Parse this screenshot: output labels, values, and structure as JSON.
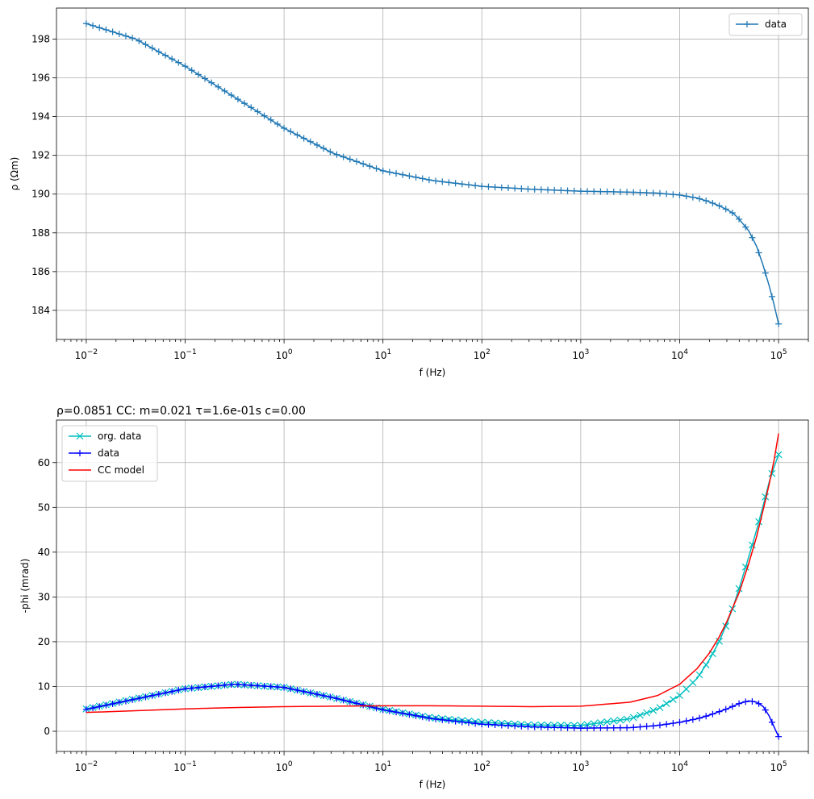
{
  "chart_data": [
    {
      "type": "line",
      "title": "",
      "xlabel": "f (Hz)",
      "ylabel": "ρ (Ωm)",
      "x_scale": "log",
      "xlim": [
        0.005,
        200000
      ],
      "ylim": [
        182.5,
        199.6
      ],
      "grid": true,
      "legend": "top-right",
      "x_tick_values": [
        0.01,
        0.1,
        1,
        10,
        100,
        1000,
        10000,
        100000
      ],
      "x_tick_labels": [
        {
          "base": "10",
          "exp": "−2"
        },
        {
          "base": "10",
          "exp": "−1"
        },
        {
          "base": "10",
          "exp": "0"
        },
        {
          "base": "10",
          "exp": "1"
        },
        {
          "base": "10",
          "exp": "2"
        },
        {
          "base": "10",
          "exp": "3"
        },
        {
          "base": "10",
          "exp": "4"
        },
        {
          "base": "10",
          "exp": "5"
        }
      ],
      "y_ticks": [
        184,
        186,
        188,
        190,
        192,
        194,
        196,
        198
      ],
      "series": [
        {
          "name": "data",
          "color": "#1f77b4",
          "marker": "plus",
          "points": [
            [
              0.01,
              198.8
            ],
            [
              0.0316,
              198.0
            ],
            [
              0.1,
              196.6
            ],
            [
              0.316,
              195.0
            ],
            [
              1,
              193.4
            ],
            [
              3.16,
              192.1
            ],
            [
              10,
              191.2
            ],
            [
              31.6,
              190.7
            ],
            [
              100,
              190.4
            ],
            [
              316,
              190.25
            ],
            [
              1000,
              190.15
            ],
            [
              3160,
              190.1
            ],
            [
              6000,
              190.05
            ],
            [
              10000,
              189.95
            ],
            [
              15000,
              189.8
            ],
            [
              20000,
              189.6
            ],
            [
              25000,
              189.4
            ],
            [
              30000,
              189.2
            ],
            [
              35000,
              189.0
            ],
            [
              40000,
              188.7
            ],
            [
              50000,
              188.1
            ],
            [
              60000,
              187.3
            ],
            [
              70000,
              186.3
            ],
            [
              80000,
              185.3
            ],
            [
              90000,
              184.3
            ],
            [
              100000,
              183.3
            ]
          ]
        }
      ]
    },
    {
      "type": "line",
      "title": "ρ=0.0851 CC: m=0.021 τ=1.6e-01s c=0.00",
      "xlabel": "f (Hz)",
      "ylabel": "-phi (mrad)",
      "x_scale": "log",
      "xlim": [
        0.005,
        200000
      ],
      "ylim": [
        -4.5,
        69.5
      ],
      "grid": true,
      "legend": "top-left",
      "x_tick_values": [
        0.01,
        0.1,
        1,
        10,
        100,
        1000,
        10000,
        100000
      ],
      "x_tick_labels": [
        {
          "base": "10",
          "exp": "−2"
        },
        {
          "base": "10",
          "exp": "−1"
        },
        {
          "base": "10",
          "exp": "0"
        },
        {
          "base": "10",
          "exp": "1"
        },
        {
          "base": "10",
          "exp": "2"
        },
        {
          "base": "10",
          "exp": "3"
        },
        {
          "base": "10",
          "exp": "4"
        },
        {
          "base": "10",
          "exp": "5"
        }
      ],
      "y_ticks": [
        0,
        10,
        20,
        30,
        40,
        50,
        60
      ],
      "series": [
        {
          "name": "org. data",
          "color": "#00bfbf",
          "marker": "x",
          "points": [
            [
              0.01,
              5.0
            ],
            [
              0.0316,
              7.3
            ],
            [
              0.1,
              9.5
            ],
            [
              0.316,
              10.5
            ],
            [
              1,
              9.8
            ],
            [
              3.16,
              7.5
            ],
            [
              10,
              4.9
            ],
            [
              31.6,
              3.0
            ],
            [
              100,
              2.0
            ],
            [
              316,
              1.4
            ],
            [
              1000,
              1.3
            ],
            [
              3160,
              2.8
            ],
            [
              6000,
              5.0
            ],
            [
              10000,
              8.0
            ],
            [
              15000,
              11.8
            ],
            [
              20000,
              16.0
            ],
            [
              25000,
              20.0
            ],
            [
              30000,
              24.0
            ],
            [
              35000,
              28.0
            ],
            [
              40000,
              32.0
            ],
            [
              50000,
              39.0
            ],
            [
              60000,
              45.0
            ],
            [
              70000,
              50.5
            ],
            [
              80000,
              55.5
            ],
            [
              90000,
              59.0
            ],
            [
              100000,
              61.8
            ]
          ]
        },
        {
          "name": "data",
          "color": "#0000ff",
          "marker": "plus",
          "points": [
            [
              0.01,
              4.9
            ],
            [
              0.0316,
              7.2
            ],
            [
              0.1,
              9.5
            ],
            [
              0.316,
              10.5
            ],
            [
              1,
              9.8
            ],
            [
              3.16,
              7.5
            ],
            [
              10,
              4.8
            ],
            [
              31.6,
              2.8
            ],
            [
              100,
              1.6
            ],
            [
              316,
              1.0
            ],
            [
              1000,
              0.7
            ],
            [
              3160,
              0.8
            ],
            [
              6000,
              1.3
            ],
            [
              10000,
              2.0
            ],
            [
              15000,
              2.8
            ],
            [
              20000,
              3.6
            ],
            [
              30000,
              5.0
            ],
            [
              40000,
              6.2
            ],
            [
              50000,
              6.8
            ],
            [
              60000,
              6.5
            ],
            [
              70000,
              5.5
            ],
            [
              80000,
              3.5
            ],
            [
              90000,
              1.0
            ],
            [
              100000,
              -1.2
            ]
          ]
        },
        {
          "name": "CC model",
          "color": "#ff0000",
          "marker": "none",
          "points": [
            [
              0.01,
              4.2
            ],
            [
              0.0316,
              4.6
            ],
            [
              0.1,
              5.0
            ],
            [
              0.316,
              5.3
            ],
            [
              1,
              5.5
            ],
            [
              3.16,
              5.6
            ],
            [
              10,
              5.7
            ],
            [
              31.6,
              5.7
            ],
            [
              100,
              5.6
            ],
            [
              316,
              5.5
            ],
            [
              1000,
              5.6
            ],
            [
              3160,
              6.5
            ],
            [
              6000,
              8.0
            ],
            [
              10000,
              10.5
            ],
            [
              15000,
              14.0
            ],
            [
              20000,
              17.5
            ],
            [
              25000,
              21.0
            ],
            [
              30000,
              24.5
            ],
            [
              35000,
              28.0
            ],
            [
              40000,
              31.0
            ],
            [
              50000,
              37.5
            ],
            [
              60000,
              43.5
            ],
            [
              70000,
              49.5
            ],
            [
              80000,
              55.0
            ],
            [
              90000,
              60.5
            ],
            [
              100000,
              66.5
            ]
          ]
        }
      ]
    }
  ]
}
